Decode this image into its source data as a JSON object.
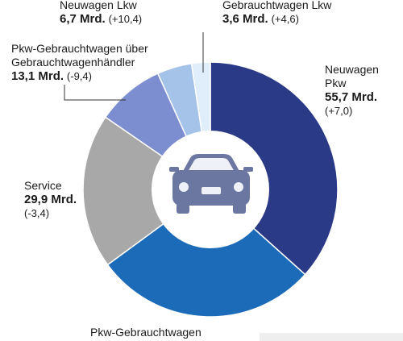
{
  "chart_data": {
    "type": "pie",
    "title": "",
    "unit_suffix": "Mrd.",
    "slices": [
      {
        "label_lines": [
          "Neuwagen",
          "Pkw"
        ],
        "value": 55.7,
        "value_text": "55,7 Mrd.",
        "change_text": "(+7,0)",
        "color": "#2b3a86"
      },
      {
        "label_lines": [
          "Pkw-Gebrauchtwagen"
        ],
        "value": 43.0,
        "value_text": "",
        "change_text": "",
        "color": "#1b6bb8"
      },
      {
        "label_lines": [
          "Service"
        ],
        "value": 29.9,
        "value_text": "29,9 Mrd.",
        "change_text": "(-3,4)",
        "color": "#a8a8a8"
      },
      {
        "label_lines": [
          "Pkw-Gebrauchtwagen über",
          "Gebrauchtwagenhändler"
        ],
        "value": 13.1,
        "value_text": "13,1 Mrd.",
        "change_text": "(-9,4)",
        "color": "#7d8ed0"
      },
      {
        "label_lines": [
          "Neuwagen Lkw"
        ],
        "value": 6.7,
        "value_text": "6,7 Mrd.",
        "change_text": "(+10,4)",
        "color": "#a5c3e8"
      },
      {
        "label_lines": [
          "Gebrauchtwagen Lkw"
        ],
        "value": 3.6,
        "value_text": "3,6 Mrd.",
        "change_text": "(+4,6)",
        "color": "#dfeefa"
      }
    ],
    "center_icon": "car-front-icon",
    "legend": "none"
  }
}
